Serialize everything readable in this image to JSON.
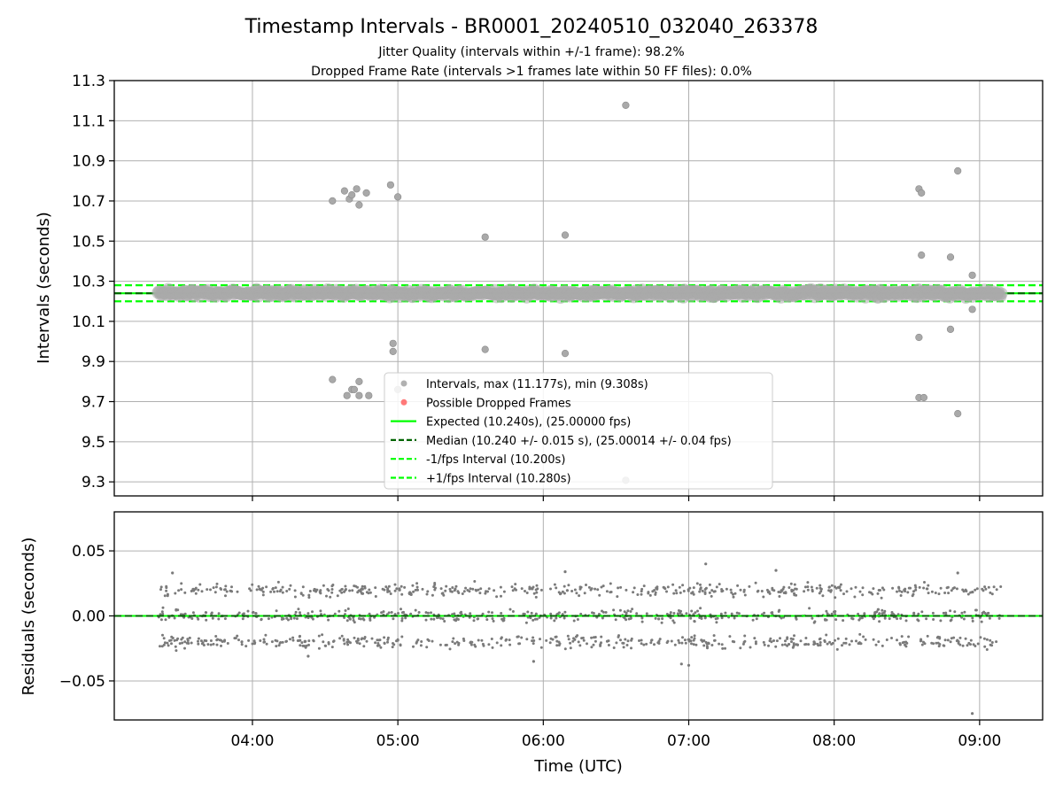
{
  "chart_data": [
    {
      "type": "scatter",
      "title": "Timestamp Intervals - BR0001_20240510_032040_263378",
      "subtitle_lines": [
        "Jitter Quality (intervals within +/-1 frame): 98.2%",
        "Dropped Frame Rate (intervals >1 frames late within 50 FF files): 0.0%"
      ],
      "xlabel": "",
      "ylabel": "Intervals (seconds)",
      "xlim": [
        "03:03",
        "09:26"
      ],
      "ylim": [
        9.23,
        11.3
      ],
      "y_ticks": [
        "9.3",
        "9.5",
        "9.7",
        "9.9",
        "10.1",
        "10.3",
        "10.5",
        "10.7",
        "10.9",
        "11.1",
        "11.3"
      ],
      "grid": true,
      "legend_position": "lower-center",
      "legend": [
        {
          "label": "Intervals, max (11.177s), min (9.308s)",
          "kind": "marker",
          "color": "#a9a9a9"
        },
        {
          "label": "Possible Dropped Frames",
          "kind": "marker",
          "color": "#ff6a6a"
        },
        {
          "label": "Expected (10.240s), (25.00000 fps)",
          "kind": "solid",
          "color": "#00ff00"
        },
        {
          "label": "Median (10.240 +/- 0.015 s), (25.00014 +/- 0.04 fps)",
          "kind": "dashed",
          "color": "#006400"
        },
        {
          "label": "-1/fps Interval (10.200s)",
          "kind": "dashed",
          "color": "#00ff00"
        },
        {
          "label": "+1/fps Interval (10.280s)",
          "kind": "dashed",
          "color": "#00ff00"
        }
      ],
      "reference_lines": [
        {
          "y": 10.24,
          "style": "solid",
          "color": "#00ff00"
        },
        {
          "y": 10.24,
          "style": "dashed",
          "color": "#006400"
        },
        {
          "y": 10.2,
          "style": "dashed",
          "color": "#00ff00"
        },
        {
          "y": 10.28,
          "style": "dashed",
          "color": "#00ff00"
        }
      ],
      "series": [
        {
          "name": "Intervals",
          "color": "#a9a9a9",
          "core_band": {
            "x_start": "03:21",
            "x_end": "09:09",
            "y_center": 10.24,
            "y_spread": 0.02
          },
          "outliers": [
            {
              "x": "04:33",
              "y": 10.7
            },
            {
              "x": "04:38",
              "y": 10.75
            },
            {
              "x": "04:40",
              "y": 10.71
            },
            {
              "x": "04:41",
              "y": 10.73
            },
            {
              "x": "04:43",
              "y": 10.76
            },
            {
              "x": "04:44",
              "y": 10.68
            },
            {
              "x": "04:47",
              "y": 10.74
            },
            {
              "x": "04:57",
              "y": 10.78
            },
            {
              "x": "05:00",
              "y": 10.72
            },
            {
              "x": "05:36",
              "y": 10.52
            },
            {
              "x": "06:09",
              "y": 10.53
            },
            {
              "x": "06:34",
              "y": 11.177
            },
            {
              "x": "08:35",
              "y": 10.76
            },
            {
              "x": "08:36",
              "y": 10.74
            },
            {
              "x": "08:51",
              "y": 10.85
            },
            {
              "x": "08:36",
              "y": 10.43
            },
            {
              "x": "08:48",
              "y": 10.42
            },
            {
              "x": "08:57",
              "y": 10.33
            },
            {
              "x": "08:57",
              "y": 10.16
            },
            {
              "x": "08:35",
              "y": 10.02
            },
            {
              "x": "08:48",
              "y": 10.06
            },
            {
              "x": "04:58",
              "y": 9.99
            },
            {
              "x": "04:58",
              "y": 9.95
            },
            {
              "x": "05:36",
              "y": 9.96
            },
            {
              "x": "06:09",
              "y": 9.94
            },
            {
              "x": "04:33",
              "y": 9.81
            },
            {
              "x": "04:39",
              "y": 9.73
            },
            {
              "x": "04:41",
              "y": 9.76
            },
            {
              "x": "04:42",
              "y": 9.76
            },
            {
              "x": "04:44",
              "y": 9.8
            },
            {
              "x": "04:44",
              "y": 9.73
            },
            {
              "x": "04:48",
              "y": 9.73
            },
            {
              "x": "05:00",
              "y": 9.76
            },
            {
              "x": "08:35",
              "y": 9.72
            },
            {
              "x": "08:37",
              "y": 9.72
            },
            {
              "x": "08:51",
              "y": 9.64
            },
            {
              "x": "06:34",
              "y": 9.308
            }
          ]
        },
        {
          "name": "Possible Dropped Frames",
          "color": "#ff6a6a",
          "points": []
        }
      ]
    },
    {
      "type": "scatter",
      "xlabel": "Time (UTC)",
      "ylabel": "Residuals (seconds)",
      "xlim": [
        "03:03",
        "09:26"
      ],
      "ylim": [
        -0.08,
        0.08
      ],
      "x_ticks": [
        "04:00",
        "05:00",
        "06:00",
        "07:00",
        "08:00",
        "09:00"
      ],
      "y_ticks": [
        "−0.05",
        "0.00",
        "0.05"
      ],
      "grid": true,
      "reference_lines": [
        {
          "y": 0.0,
          "style": "solid",
          "color": "#00ff00"
        },
        {
          "y": 0.0,
          "style": "dashed",
          "color": "#006400"
        }
      ],
      "series": [
        {
          "name": "Residuals",
          "color": "#7a7a7a",
          "distribution": {
            "x_start": "03:21",
            "x_end": "09:09",
            "levels": [
              -0.02,
              0.0,
              0.02
            ],
            "spread": 0.01
          },
          "extremes": [
            {
              "x": "03:27",
              "y": 0.033
            },
            {
              "x": "07:07",
              "y": 0.04
            },
            {
              "x": "07:36",
              "y": 0.035
            },
            {
              "x": "06:09",
              "y": 0.034
            },
            {
              "x": "08:51",
              "y": 0.033
            },
            {
              "x": "04:23",
              "y": -0.031
            },
            {
              "x": "05:56",
              "y": -0.035
            },
            {
              "x": "06:57",
              "y": -0.037
            },
            {
              "x": "07:00",
              "y": -0.038
            },
            {
              "x": "08:57",
              "y": -0.075
            }
          ]
        }
      ]
    }
  ]
}
